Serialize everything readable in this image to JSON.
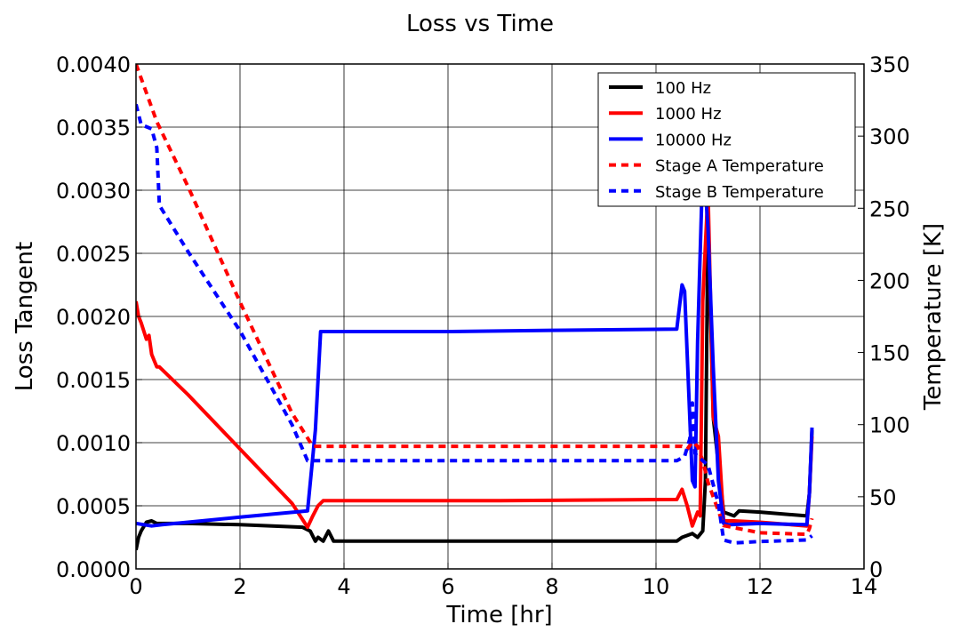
{
  "chart_data": {
    "type": "line",
    "title": "Loss vs Time",
    "xlabel": "Time [hr]",
    "ylabel": "Loss Tangent",
    "y2label": "Temperature [K]",
    "xlim": [
      0,
      14
    ],
    "ylim": [
      0,
      0.004
    ],
    "y2lim": [
      0,
      350
    ],
    "xticks": [
      "0",
      "2",
      "4",
      "6",
      "8",
      "10",
      "12",
      "14"
    ],
    "yticks": [
      "0.0000",
      "0.0005",
      "0.0010",
      "0.0015",
      "0.0020",
      "0.0025",
      "0.0030",
      "0.0035",
      "0.0040"
    ],
    "y2ticks": [
      "0",
      "50",
      "100",
      "150",
      "200",
      "250",
      "300",
      "350"
    ],
    "grid": true,
    "legend_position": "top-right",
    "series": [
      {
        "name": "100 Hz",
        "axis": "left",
        "color": "#000000",
        "style": "solid",
        "x": [
          0,
          0.05,
          0.1,
          0.2,
          0.3,
          0.4,
          1.0,
          2.0,
          3.2,
          3.35,
          3.45,
          3.5,
          3.6,
          3.7,
          3.8,
          3.9,
          5.0,
          7.0,
          10.4,
          10.5,
          10.7,
          10.8,
          10.9,
          10.95,
          11.0,
          11.1,
          11.3,
          11.5,
          11.6,
          12.0,
          12.9,
          12.95,
          13.0
        ],
        "y": [
          0.00015,
          0.00025,
          0.0003,
          0.00037,
          0.00038,
          0.00036,
          0.00036,
          0.00035,
          0.00033,
          0.0003,
          0.00022,
          0.00025,
          0.00022,
          0.0003,
          0.00022,
          0.00022,
          0.00022,
          0.00022,
          0.00022,
          0.00025,
          0.00028,
          0.00025,
          0.0003,
          0.0007,
          0.0028,
          0.0012,
          0.00045,
          0.00042,
          0.00046,
          0.00045,
          0.00042,
          0.0006,
          0.0011
        ]
      },
      {
        "name": "1000 Hz",
        "axis": "left",
        "color": "#ff0000",
        "style": "solid",
        "x": [
          0,
          0.05,
          0.1,
          0.2,
          0.25,
          0.3,
          0.35,
          0.4,
          0.45,
          1.0,
          2.0,
          3.0,
          3.3,
          3.4,
          3.5,
          3.6,
          3.7,
          5.0,
          7.0,
          10.4,
          10.5,
          10.6,
          10.7,
          10.8,
          10.85,
          10.9,
          11.0,
          11.1,
          11.2,
          11.3,
          11.5,
          12.0,
          12.9,
          12.95,
          13.0
        ],
        "y": [
          0.00212,
          0.002,
          0.00195,
          0.00182,
          0.00185,
          0.0017,
          0.00165,
          0.0016,
          0.0016,
          0.00138,
          0.00095,
          0.00052,
          0.00033,
          0.00042,
          0.0005,
          0.00054,
          0.00054,
          0.00054,
          0.00054,
          0.00055,
          0.00063,
          0.0005,
          0.00034,
          0.00045,
          0.00042,
          0.00212,
          0.003,
          0.0012,
          0.00105,
          0.00038,
          0.00038,
          0.00037,
          0.00034,
          0.0006,
          0.00105
        ]
      },
      {
        "name": "10000 Hz",
        "axis": "left",
        "color": "#0000ff",
        "style": "solid",
        "x": [
          0,
          0.3,
          0.5,
          1.0,
          2.0,
          3.3,
          3.45,
          3.55,
          3.6,
          4.0,
          6.0,
          8.0,
          10.4,
          10.5,
          10.55,
          10.6,
          10.7,
          10.75,
          10.8,
          10.9,
          10.95,
          11.0,
          11.1,
          11.2,
          11.3,
          11.4,
          12.0,
          12.9,
          12.95,
          13.0
        ],
        "y": [
          0.00036,
          0.00034,
          0.00035,
          0.00037,
          0.00041,
          0.00046,
          0.0011,
          0.00188,
          0.00188,
          0.00188,
          0.00188,
          0.00189,
          0.0019,
          0.00225,
          0.0022,
          0.0017,
          0.0007,
          0.00065,
          0.0018,
          0.0032,
          0.003,
          0.0027,
          0.0016,
          0.0007,
          0.00036,
          0.00035,
          0.00036,
          0.00035,
          0.0006,
          0.00112
        ]
      },
      {
        "name": "Stage A Temperature",
        "axis": "right",
        "color": "#ff0000",
        "style": "dashed",
        "x": [
          0,
          0.4,
          1.0,
          2.0,
          3.0,
          3.4,
          3.5,
          5.0,
          8.0,
          10.4,
          10.5,
          10.6,
          10.7,
          10.8,
          10.9,
          11.0,
          11.1,
          11.3,
          12.0,
          12.9,
          12.95,
          13.0
        ],
        "y": [
          350,
          310,
          265,
          185,
          108,
          85,
          85,
          85,
          85,
          85,
          85,
          83,
          88,
          85,
          75,
          60,
          50,
          30,
          25,
          24,
          28,
          35
        ]
      },
      {
        "name": "Stage B Temperature",
        "axis": "right",
        "color": "#0000ff",
        "style": "dashed",
        "x": [
          0,
          0.1,
          0.3,
          0.4,
          0.45,
          1.0,
          2.0,
          3.0,
          3.3,
          3.4,
          5.0,
          8.0,
          10.4,
          10.55,
          10.65,
          10.7,
          10.75,
          10.8,
          11.0,
          11.2,
          11.3,
          11.5,
          12.0,
          12.9,
          13.0
        ],
        "y": [
          322,
          308,
          305,
          292,
          252,
          220,
          165,
          100,
          75,
          75,
          75,
          75,
          75,
          78,
          90,
          115,
          80,
          78,
          72,
          45,
          20,
          18,
          19,
          20,
          23
        ]
      }
    ]
  }
}
